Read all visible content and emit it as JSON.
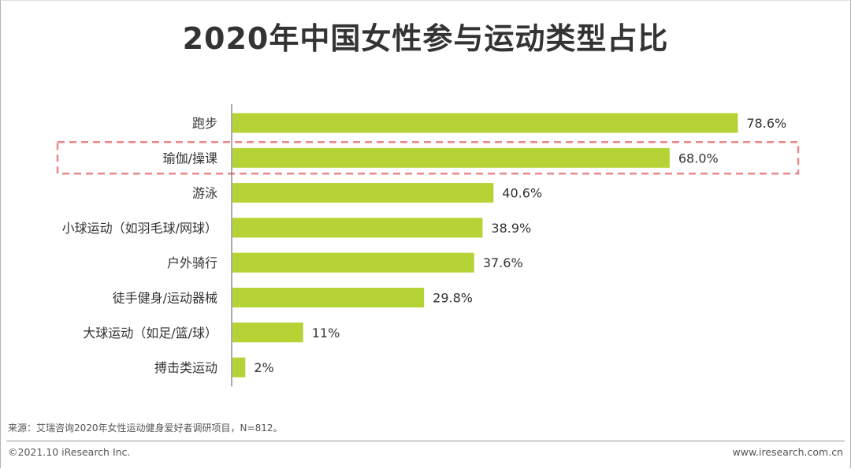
{
  "page": {
    "title": "2020年中国女性参与运动类型占比",
    "source": "来源：艾瑞咨询2020年女性运动健身爱好者调研项目，N=812。",
    "copyright": "©2021.10 iResearch Inc.",
    "website": "www.iresearch.com.cn"
  },
  "colors": {
    "bar": "#b5d334",
    "highlight_box": "#e88a8a",
    "axis": "#555555",
    "text": "#333333"
  },
  "chart_data": {
    "type": "bar",
    "orientation": "horizontal",
    "categories": [
      "跑步",
      "瑜伽/操课",
      "游泳",
      "小球运动（如羽毛球/网球）",
      "户外骑行",
      "徒手健身/运动器械",
      "大球运动（如足/篮/球）",
      "搏击类运动"
    ],
    "values": [
      78.6,
      68.0,
      40.6,
      38.9,
      37.6,
      29.8,
      11,
      2
    ],
    "value_labels": [
      "78.6%",
      "68.0%",
      "40.6%",
      "38.9%",
      "37.6%",
      "29.8%",
      "11%",
      "2%"
    ],
    "highlighted_category": "瑜伽/操课",
    "xlim": [
      0,
      100
    ],
    "grid": false,
    "legend": "none"
  }
}
